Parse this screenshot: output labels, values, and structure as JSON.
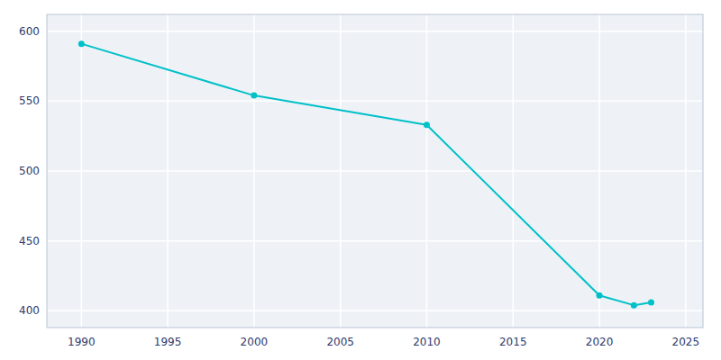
{
  "chart_data": {
    "type": "line",
    "x": [
      1990,
      2000,
      2010,
      2020,
      2022,
      2023
    ],
    "values": [
      591,
      554,
      533,
      411,
      404,
      406
    ],
    "color": "#00c0c8",
    "marker": "circle",
    "xlim": [
      1988,
      2026
    ],
    "ylim": [
      388,
      612
    ],
    "xticks": [
      1990,
      1995,
      2000,
      2005,
      2010,
      2015,
      2020,
      2025
    ],
    "yticks": [
      400,
      450,
      500,
      550,
      600
    ],
    "grid": true
  }
}
